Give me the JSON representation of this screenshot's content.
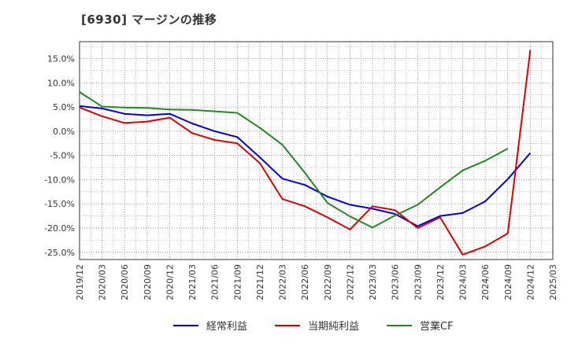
{
  "chart_data": {
    "type": "line",
    "title": "[6930]  マージンの推移",
    "xlabel": "",
    "ylabel": "",
    "ylim": [
      -26.5,
      18.5
    ],
    "yticks": [
      15,
      10,
      5,
      0,
      -5,
      -10,
      -15,
      -20,
      -25
    ],
    "ytick_labels": [
      "15.0%",
      "10.0%",
      "5.0%",
      "0.0%",
      "-5.0%",
      "-10.0%",
      "-15.0%",
      "-20.0%",
      "-25.0%"
    ],
    "x_ticks": [
      "2019/12",
      "2020/03",
      "2020/06",
      "2020/09",
      "2020/12",
      "2021/03",
      "2021/06",
      "2021/09",
      "2021/12",
      "2022/03",
      "2022/06",
      "2022/09",
      "2022/12",
      "2023/03",
      "2023/06",
      "2023/09",
      "2023/12",
      "2024/03",
      "2024/06",
      "2024/09",
      "2024/12",
      "2025/03"
    ],
    "grid": true,
    "legend_position": "bottom",
    "series": [
      {
        "name": "経常利益",
        "color": "#0000dd",
        "values": [
          5.2,
          4.7,
          3.6,
          3.3,
          3.6,
          1.6,
          0.0,
          -1.2,
          -5.4,
          -9.8,
          -11.1,
          -13.5,
          -15.2,
          -16.0,
          -17.1,
          -19.6,
          -17.5,
          -16.9,
          -14.5,
          -9.9,
          -4.5,
          null
        ]
      },
      {
        "name": "当期純利益",
        "color": "#dd0000",
        "values": [
          4.9,
          3.1,
          1.7,
          2.0,
          2.8,
          -0.4,
          -1.8,
          -2.5,
          -6.6,
          -14.0,
          -15.5,
          -17.8,
          -20.3,
          -15.5,
          -16.3,
          -20.0,
          -17.8,
          -25.5,
          -23.8,
          -21.1,
          16.8,
          null
        ]
      },
      {
        "name": "営業CF",
        "color": "#228822",
        "values": [
          8.1,
          5.1,
          4.9,
          4.8,
          4.5,
          4.4,
          4.1,
          3.8,
          0.7,
          -2.8,
          -8.6,
          -14.8,
          -17.6,
          -19.9,
          -17.4,
          -15.2,
          -11.6,
          -8.1,
          -6.1,
          -3.6,
          null,
          null
        ]
      }
    ]
  }
}
